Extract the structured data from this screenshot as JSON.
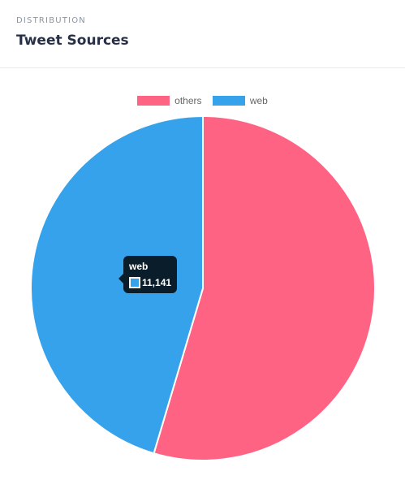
{
  "card": {
    "eyebrow": "DISTRIBUTION",
    "title": "Tweet Sources"
  },
  "chart_data": {
    "type": "pie",
    "categories": [
      "others",
      "web"
    ],
    "values": [
      13400,
      11141
    ],
    "colors": [
      "#ff6384",
      "#36a2eb"
    ],
    "legend_position": "top",
    "title": "",
    "tooltip": {
      "label": "web",
      "value": "11,141"
    }
  }
}
